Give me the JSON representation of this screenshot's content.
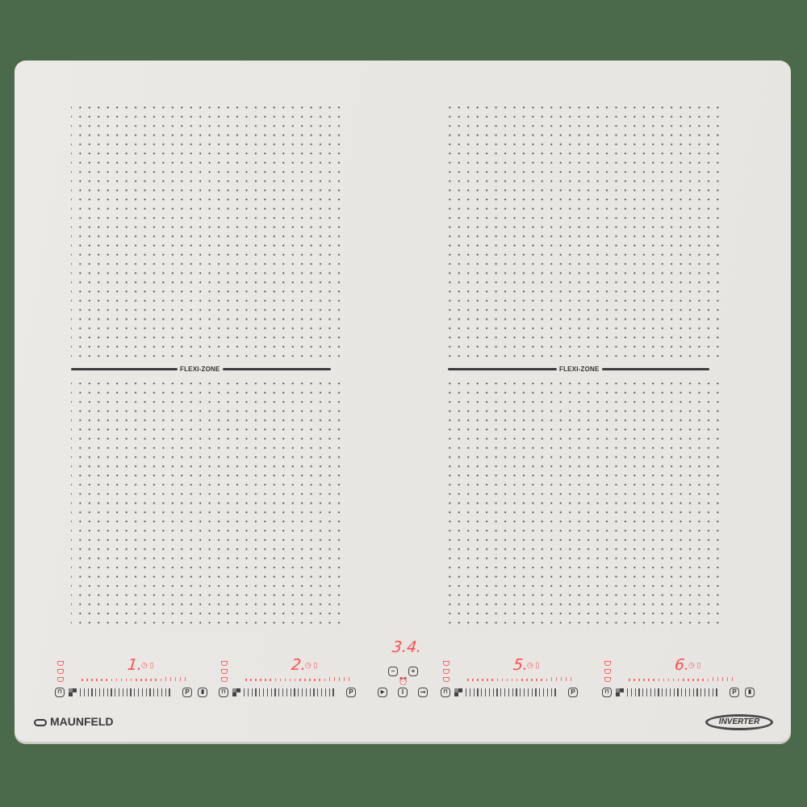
{
  "brand": "MAUNFELD",
  "badge": "INVERTER",
  "flexi_label": "FLEXI-ZONE",
  "center_display": "3.4.",
  "zones": [
    {
      "digit": "1.",
      "boost": true
    },
    {
      "digit": "2.",
      "boost": false
    },
    {
      "digit": "5.",
      "boost": false
    },
    {
      "digit": "6.",
      "boost": true
    }
  ],
  "center_buttons": {
    "minus": "−",
    "plus": "+",
    "power": "I",
    "play": "▶",
    "lock": "⊸"
  },
  "slider_p": "P",
  "colors": {
    "display": "#ff4d4d",
    "panel": "#ebe9e5",
    "background": "#4b6a4b",
    "marks": "#444444"
  }
}
